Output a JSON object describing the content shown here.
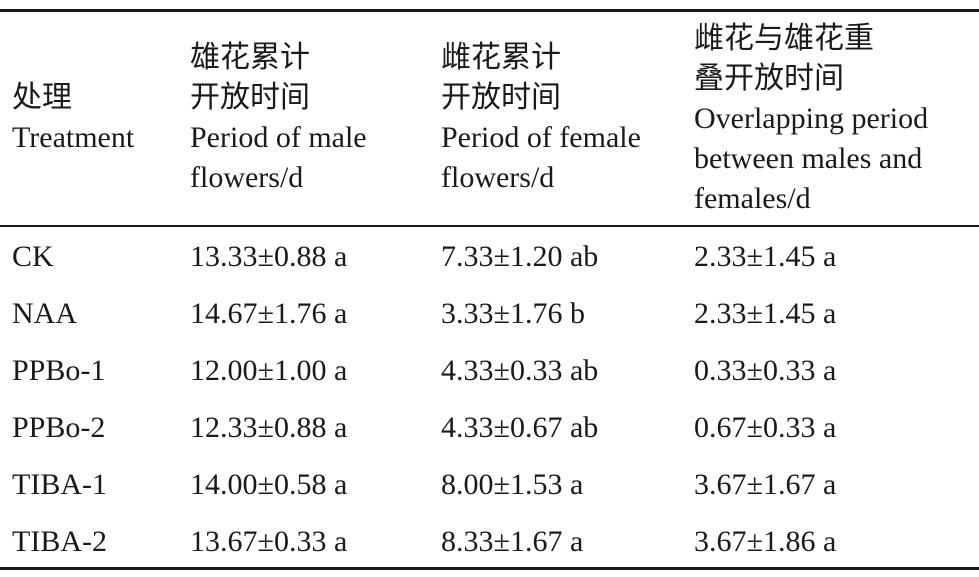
{
  "table": {
    "headers": [
      {
        "lines": [
          "处理",
          "Treatment"
        ]
      },
      {
        "lines": [
          "雄花累计",
          "开放时间",
          "Period of male",
          "flowers/d"
        ]
      },
      {
        "lines": [
          "雌花累计",
          "开放时间",
          "Period of female",
          "flowers/d"
        ]
      },
      {
        "lines": [
          "雌花与雄花重",
          "叠开放时间",
          "Overlapping period",
          "between males and",
          "females/d"
        ]
      }
    ],
    "rows": [
      [
        "CK",
        "13.33±0.88 a",
        "7.33±1.20 ab",
        "2.33±1.45 a"
      ],
      [
        "NAA",
        "14.67±1.76 a",
        "3.33±1.76 b",
        "2.33±1.45 a"
      ],
      [
        "PPBo-1",
        "12.00±1.00 a",
        "4.33±0.33 ab",
        "0.33±0.33 a"
      ],
      [
        "PPBo-2",
        "12.33±0.88 a",
        "4.33±0.67 ab",
        "0.67±0.33 a"
      ],
      [
        "TIBA-1",
        "14.00±0.58 a",
        "8.00±1.53 a",
        "3.67±1.67 a"
      ],
      [
        "TIBA-2",
        "13.67±0.33 a",
        "8.33±1.67 a",
        "3.67±1.86 a"
      ]
    ]
  }
}
